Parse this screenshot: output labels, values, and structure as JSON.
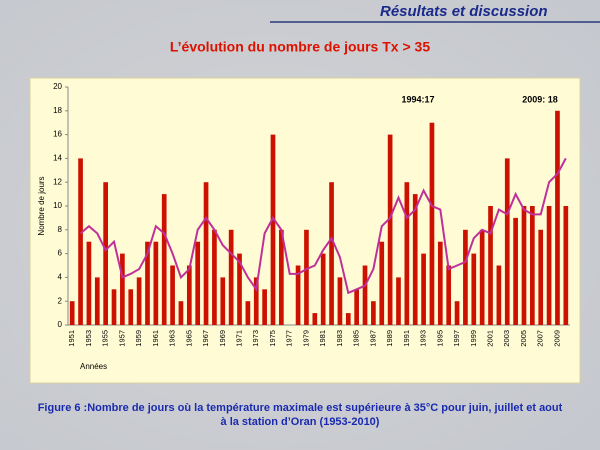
{
  "header": "Résultats et discussion",
  "chart_data": {
    "type": "bar",
    "title": "L’évolution du nombre de jours Tx > 35",
    "y_label": "Nombre de jours",
    "x_label": "Années",
    "categories": [
      "1951",
      null,
      "1953",
      null,
      "1955",
      null,
      "1957",
      null,
      "1959",
      null,
      "1961",
      null,
      "1963",
      null,
      "1965",
      null,
      "1967",
      null,
      "1969",
      null,
      "1971",
      null,
      "1973",
      null,
      "1975",
      null,
      "1977",
      null,
      "1979",
      null,
      "1981",
      null,
      "1983",
      null,
      "1985",
      null,
      "1987",
      null,
      "1989",
      null,
      "1991",
      null,
      "1993",
      null,
      "1995",
      null,
      "1997",
      null,
      "1999",
      null,
      "2001",
      null,
      "2003",
      null,
      "2005",
      null,
      "2007",
      null,
      "2009",
      null
    ],
    "series": [
      {
        "color": "#cc1100",
        "kind": "bar",
        "values": [
          2,
          14,
          7,
          4,
          12,
          3,
          6,
          3,
          4,
          7,
          7,
          11,
          5,
          2,
          5,
          7,
          12,
          8,
          4,
          8,
          6,
          2,
          4,
          3,
          16,
          8,
          0,
          5,
          8,
          1,
          6,
          12,
          4,
          1,
          3,
          5,
          2,
          7,
          16,
          4,
          12,
          11,
          6,
          17,
          7,
          5,
          2,
          8,
          6,
          8,
          10,
          5,
          14,
          9,
          10,
          10,
          8,
          10,
          18,
          10
        ]
      },
      {
        "color": "#c0309a",
        "kind": "line",
        "values": [
          null,
          7.7,
          8.3,
          7.7,
          6.3,
          7,
          4,
          4.3,
          4.7,
          6,
          8.3,
          7.7,
          6,
          4,
          4.7,
          8,
          9,
          8,
          6.7,
          6,
          5.3,
          4,
          3,
          7.7,
          9,
          8,
          4.3,
          4.3,
          4.7,
          5,
          6.3,
          7.3,
          5.7,
          2.7,
          3,
          3.3,
          4.7,
          8.3,
          9,
          10.7,
          9,
          9.7,
          11.3,
          10,
          9.7,
          4.7,
          5,
          5.3,
          7.3,
          8,
          7.7,
          9.7,
          9.3,
          11,
          9.7,
          9.3,
          9.3,
          12,
          12.7,
          14
        ]
      }
    ],
    "annotations": [
      "1994:17",
      "2009: 18"
    ],
    "ylim": [
      0,
      20
    ],
    "yticks": [
      0,
      2,
      4,
      6,
      8,
      10,
      12,
      14,
      16,
      18,
      20
    ],
    "grid": false
  },
  "caption": [
    "Figure 6 :Nombre de jours où la température maximale est supérieure à 35°C pour juin, juillet et aout",
    "à la station d’Oran (1953-2010)"
  ]
}
